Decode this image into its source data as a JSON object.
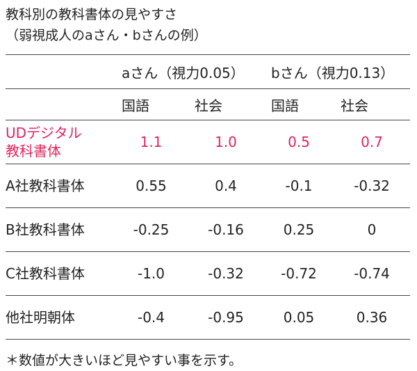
{
  "title": [
    "教科別の教科書体の見やすさ",
    "（弱視成人のaさん・bさんの例）"
  ],
  "table": {
    "groups": [
      "aさん（視力0.05）",
      "bさん（視力0.13）"
    ],
    "subheaders": [
      "国語",
      "社会",
      "国語",
      "社会"
    ],
    "rows": [
      {
        "label": [
          "UDデジタル",
          "教科書体"
        ],
        "values": [
          "1.1",
          "1.0",
          "0.5",
          "0.7"
        ],
        "highlight": true
      },
      {
        "label": [
          "A社教科書体"
        ],
        "values": [
          "0.55",
          "0.4",
          "-0.1",
          "-0.32"
        ]
      },
      {
        "label": [
          "B社教科書体"
        ],
        "values": [
          "-0.25",
          "-0.16",
          "0.25",
          "0"
        ]
      },
      {
        "label": [
          "C社教科書体"
        ],
        "values": [
          "-1.0",
          "-0.32",
          "-0.72",
          "-0.74"
        ]
      },
      {
        "label": [
          "他社明朝体"
        ],
        "values": [
          "-0.4",
          "-0.95",
          "0.05",
          "0.36"
        ]
      }
    ]
  },
  "footnote": "＊数値が大きいほど見やすい事を示す。"
}
